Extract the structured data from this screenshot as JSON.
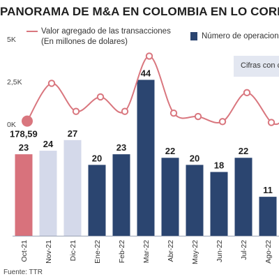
{
  "header": {
    "title": "PANORAMA DE M&A EN COLOMBIA EN LO CORRIDO"
  },
  "legend": {
    "line_label_1": "Valor agregado de las transacciones",
    "line_label_2": "(En millones de dolares)",
    "bar_label": "Número de operaciones"
  },
  "note": {
    "text": "Cifras con c"
  },
  "footer": {
    "source": "Fuente: TTR"
  },
  "chart_data": {
    "type": "bar",
    "categories": [
      "Oct-21",
      "Nov-21",
      "Dic-21",
      "Ene-22",
      "Feb-22",
      "Mar-22",
      "Abr-22",
      "May-22",
      "Jun-22",
      "Jul-22",
      "Ago-22"
    ],
    "series": [
      {
        "name": "Número de operaciones",
        "chart_kind": "bar",
        "values": [
          23,
          24,
          27,
          20,
          23,
          44,
          22,
          20,
          18,
          22,
          11
        ],
        "labels": [
          "23",
          "24",
          "27",
          "20",
          "23",
          "44",
          "22",
          "20",
          "18",
          "22",
          "11"
        ],
        "colors": [
          "#d8727c",
          "#d4d9ea",
          "#d4d9ea",
          "#2b4570",
          "#2b4570",
          "#2b4570",
          "#2b4570",
          "#2b4570",
          "#2b4570",
          "#2b4570",
          "#2b4570"
        ]
      },
      {
        "name": "Valor agregado de las transacciones",
        "chart_kind": "line",
        "values": [
          178.59,
          2400,
          750,
          1600,
          750,
          4000,
          650,
          450,
          150,
          1850,
          100
        ],
        "first_value_label": "178,59",
        "color": "#d9767e"
      }
    ],
    "line_axis": {
      "ticks": [
        "5K",
        "2,5K",
        "0K"
      ],
      "tick_values": [
        5000,
        2500,
        0
      ],
      "ylim": [
        0,
        5000
      ]
    },
    "bar_axis": {
      "ylim": [
        0,
        50
      ]
    },
    "grid": false
  }
}
